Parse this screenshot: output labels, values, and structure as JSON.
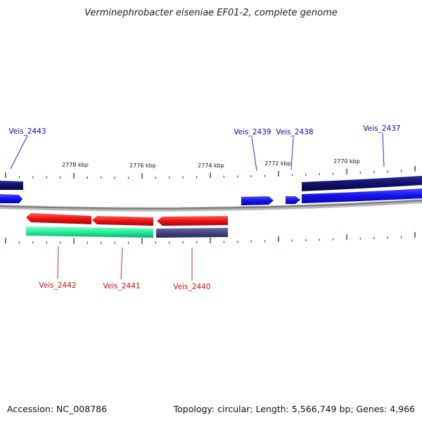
{
  "title": "Verminephrobacter eiseniae EF01-2, complete genome",
  "footer": {
    "accession": "Accession: NC_008786",
    "summary": "Topology: circular; Length: 5,566,749 bp; Genes: 4,966"
  },
  "scale_labels": [
    "2778 kbp",
    "2776 kbp",
    "2774 kbp",
    "2772 kbp",
    "2770 kbp"
  ],
  "colors": {
    "label_top": "#0a0ab8",
    "label_bottom": "#c81010",
    "tick": "#1a7a1a",
    "backbone": "#8c8c8c",
    "gene_red": "#ee1111",
    "gene_blue": "#1111ee",
    "gene_navy": "#10106e",
    "gene_green": "#22ee99",
    "gene_slate": "#44447e"
  },
  "genes_top": [
    {
      "label": "Veis_2443"
    },
    {
      "label": "Veis_2439"
    },
    {
      "label": "Veis_2438"
    },
    {
      "label": "Veis_2437"
    }
  ],
  "genes_bottom": [
    {
      "label": "Veis_2442"
    },
    {
      "label": "Veis_2441"
    },
    {
      "label": "Veis_2440"
    }
  ]
}
